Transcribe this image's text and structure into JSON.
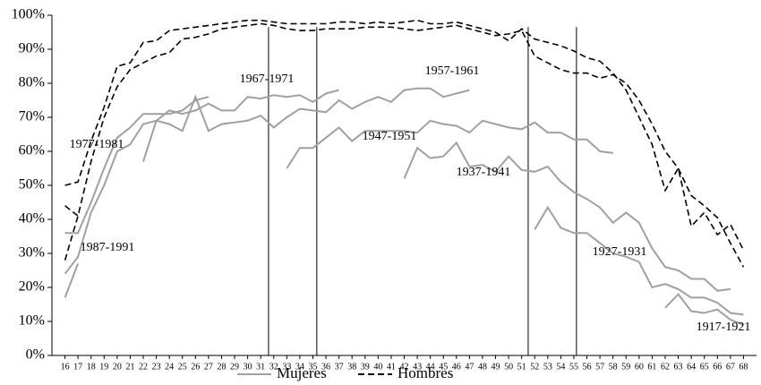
{
  "chart_data": {
    "type": "line",
    "xlim": [
      15,
      69
    ],
    "xticks": [
      16,
      17,
      18,
      19,
      20,
      21,
      22,
      23,
      24,
      25,
      26,
      27,
      28,
      29,
      30,
      31,
      32,
      33,
      34,
      35,
      36,
      37,
      38,
      39,
      40,
      41,
      42,
      43,
      44,
      45,
      46,
      47,
      48,
      49,
      50,
      51,
      52,
      53,
      54,
      55,
      56,
      57,
      58,
      59,
      60,
      61,
      62,
      63,
      64,
      65,
      66,
      67,
      68
    ],
    "ylim": [
      0,
      100
    ],
    "yticks": [
      {
        "value": 0,
        "label": "0%"
      },
      {
        "value": 10,
        "label": "10%"
      },
      {
        "value": 20,
        "label": "20%"
      },
      {
        "value": 30,
        "label": "30%"
      },
      {
        "value": 40,
        "label": "40%"
      },
      {
        "value": 50,
        "label": "50%"
      },
      {
        "value": 60,
        "label": "60%"
      },
      {
        "value": 70,
        "label": "70%"
      },
      {
        "value": 80,
        "label": "80%"
      },
      {
        "value": 90,
        "label": "90%"
      },
      {
        "value": 100,
        "label": "100%"
      }
    ],
    "vlines": [
      31.6,
      35.3,
      51.5,
      55.2
    ],
    "legend": "bottom",
    "annotations": [
      "1987-1991",
      "1977-1981",
      "1967-1971",
      "1957-1961",
      "1947-1951",
      "1937-1941",
      "1927-1931",
      "1917-1921"
    ],
    "series": [
      {
        "name": "Mujeres",
        "color": "#a0a0a0",
        "dashed": false,
        "cohorts": [
          {
            "x": [
              16,
              17
            ],
            "values": [
              17,
              27
            ]
          },
          {
            "x": [
              16,
              17,
              18,
              19,
              20,
              21,
              22,
              23,
              24,
              25,
              26,
              27
            ],
            "values": [
              36,
              36,
              45,
              55,
              64,
              67,
              71,
              71,
              71,
              72,
              75,
              76
            ]
          },
          {
            "x": [
              16,
              17,
              18,
              19,
              20,
              21,
              22,
              23,
              24,
              25,
              26,
              27,
              28,
              29,
              30,
              31,
              32,
              33,
              34,
              35,
              36,
              37,
              38,
              39,
              40,
              41,
              42,
              43,
              44,
              45,
              46,
              47
            ],
            "values": [
              24,
              29,
              42,
              50,
              60,
              62,
              68,
              69,
              68,
              66,
              76,
              66,
              68,
              68.5,
              69,
              70.5,
              67,
              70,
              72.5,
              72,
              71.5,
              75,
              72.5,
              74.5,
              76,
              74.5,
              78,
              78.5,
              78.5,
              76,
              77,
              78
            ]
          },
          {
            "x": [
              22,
              23,
              24,
              25,
              26,
              27,
              28,
              29,
              30,
              31,
              32,
              33,
              34,
              35,
              36,
              37
            ],
            "values": [
              57,
              69,
              72,
              71,
              72,
              74,
              72,
              72,
              76,
              75.5,
              76.5,
              76,
              76.5,
              74.5,
              77,
              78
            ]
          },
          {
            "x": [
              33,
              34,
              35,
              36,
              37,
              38,
              39,
              40,
              41,
              42,
              43,
              44,
              45,
              46,
              47,
              48,
              49,
              50,
              51,
              52,
              53,
              54,
              55,
              56,
              57,
              58
            ],
            "values": [
              55,
              61,
              61,
              64,
              67,
              63,
              66,
              66,
              66,
              66,
              65.5,
              69,
              68,
              67.5,
              65.5,
              69,
              68,
              67,
              66.5,
              68.5,
              65.5,
              65.5,
              63.5,
              63.5,
              60,
              59.5
            ]
          },
          {
            "x": [
              42,
              43,
              44,
              45,
              46,
              47,
              48,
              49,
              50,
              51,
              52,
              53,
              54,
              55,
              56,
              57,
              58,
              59,
              60,
              61,
              62,
              63,
              64,
              65,
              66,
              67
            ],
            "values": [
              52,
              61,
              58,
              58.5,
              62.5,
              55.5,
              56,
              54,
              58.5,
              54.5,
              54,
              55.5,
              51,
              48,
              46,
              43.5,
              39,
              42,
              39,
              31.5,
              26,
              25,
              22.5,
              22.5,
              19,
              19.5
            ]
          },
          {
            "x": [
              52,
              53,
              54,
              55,
              56,
              57,
              58,
              59,
              60,
              61,
              62,
              63,
              64,
              65,
              66,
              67,
              68
            ],
            "values": [
              37,
              43.5,
              37.5,
              36,
              36,
              33,
              30,
              29,
              27.5,
              20,
              21,
              19.5,
              17,
              17,
              15.5,
              12.5,
              12
            ]
          },
          {
            "x": [
              62,
              63,
              64,
              65,
              66,
              67,
              68
            ],
            "values": [
              14,
              18,
              13,
              12.5,
              13.5,
              10.5,
              9
            ]
          }
        ]
      },
      {
        "name": "Hombres",
        "color": "#000000",
        "dashed": true,
        "cohorts": [
          {
            "x": [
              16,
              17
            ],
            "values": [
              44,
              41
            ]
          },
          {
            "x": [
              16,
              17,
              18,
              19,
              20,
              21,
              22,
              23,
              24,
              25,
              26,
              27,
              28,
              29,
              30,
              31,
              32,
              33,
              34,
              35,
              36,
              37,
              38,
              39,
              40,
              41,
              42,
              43,
              44,
              45,
              46,
              47,
              48,
              49,
              50,
              51,
              52,
              53,
              54,
              55,
              56,
              57,
              58,
              59,
              60,
              61,
              62,
              63,
              64,
              65,
              66,
              67,
              68
            ],
            "values": [
              28,
              41,
              57,
              70,
              79,
              84,
              86,
              88,
              89,
              93,
              93.5,
              94.5,
              96,
              96.5,
              97,
              97.5,
              97,
              96,
              95.5,
              95.5,
              96,
              96,
              96,
              96.5,
              96.5,
              96.5,
              96,
              95.5,
              96,
              96.5,
              97,
              96,
              95,
              94,
              94.5,
              95.5,
              88,
              86,
              84,
              83,
              83,
              81.5,
              82.5,
              80,
              75,
              68,
              60,
              55,
              47,
              44,
              40.5,
              33,
              26
            ]
          },
          {
            "x": [
              16,
              17,
              18,
              19,
              20,
              21,
              22,
              23,
              24,
              25,
              26,
              27,
              28,
              29,
              30,
              31,
              32,
              33,
              34,
              35,
              36,
              37,
              38,
              39,
              40,
              41,
              42,
              43,
              44,
              45,
              46,
              47,
              48,
              49,
              50,
              51,
              52,
              53,
              54,
              55,
              56,
              57,
              58,
              59,
              60,
              61,
              62,
              63,
              64,
              65,
              66,
              67,
              68
            ],
            "values": [
              50,
              51,
              63,
              73,
              85,
              86,
              92,
              92.5,
              95.5,
              96,
              96.5,
              97,
              97.5,
              98,
              98.5,
              98.5,
              98,
              97.5,
              97.5,
              97.5,
              97.5,
              98,
              98,
              97.5,
              98,
              97.5,
              98,
              98.5,
              97.5,
              97.5,
              98,
              97,
              96,
              95,
              92.5,
              96,
              93,
              92,
              91,
              89.5,
              87.5,
              86.5,
              83,
              78,
              70,
              62,
              48.5,
              55,
              38,
              42,
              35.5,
              38.5,
              31
            ]
          }
        ]
      }
    ]
  }
}
